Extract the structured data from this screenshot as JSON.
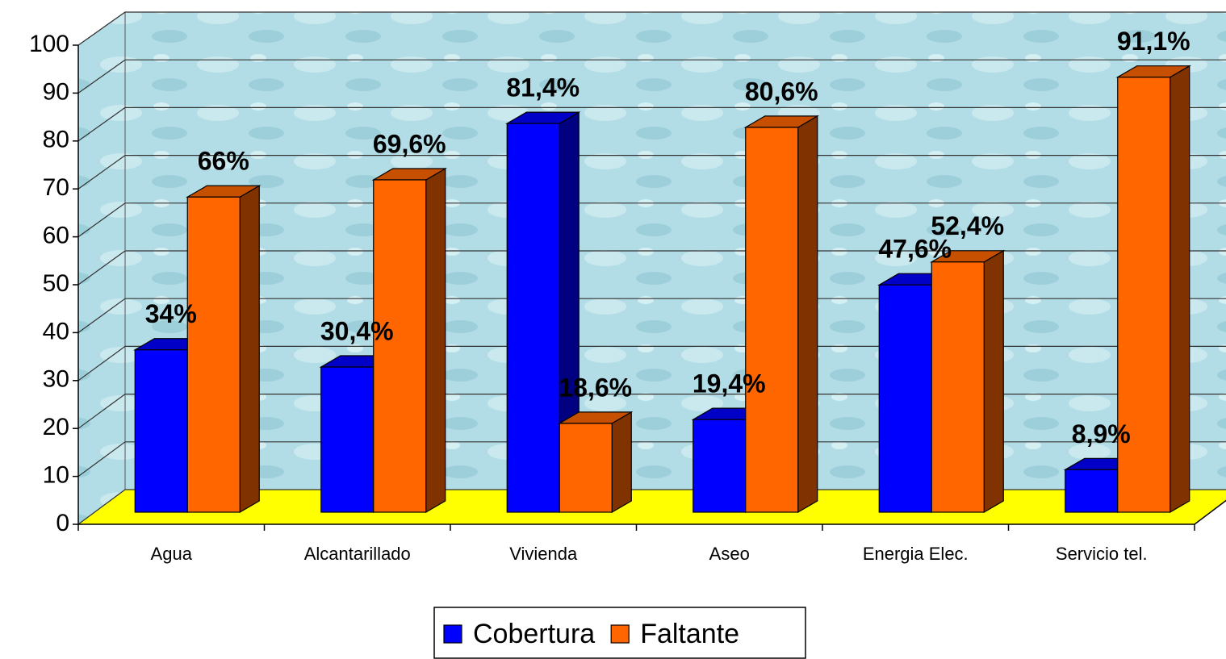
{
  "chart_data": {
    "type": "bar3d",
    "categories": [
      "Agua",
      "Alcantarillado",
      "Vivienda",
      "Aseo",
      "Energia Elec.",
      "Servicio tel."
    ],
    "series": [
      {
        "name": "Cobertura",
        "color": "#0000ff",
        "values": [
          34,
          30.4,
          81.4,
          19.4,
          47.6,
          8.9
        ],
        "value_labels": [
          "34%",
          "30,4%",
          "81,4%",
          "19,4%",
          "47,6%",
          "8,9%"
        ]
      },
      {
        "name": "Faltante",
        "color": "#ff6600",
        "values": [
          66,
          69.6,
          18.6,
          80.6,
          52.4,
          91.1
        ],
        "value_labels": [
          "66%",
          "69,6%",
          "18,6%",
          "80,6%",
          "52,4%",
          "91,1%"
        ]
      }
    ],
    "ylim": [
      0,
      100
    ],
    "yticks": [
      0,
      10,
      20,
      30,
      40,
      50,
      60,
      70,
      80,
      90,
      100
    ],
    "grid": true,
    "legend": "bottom"
  }
}
